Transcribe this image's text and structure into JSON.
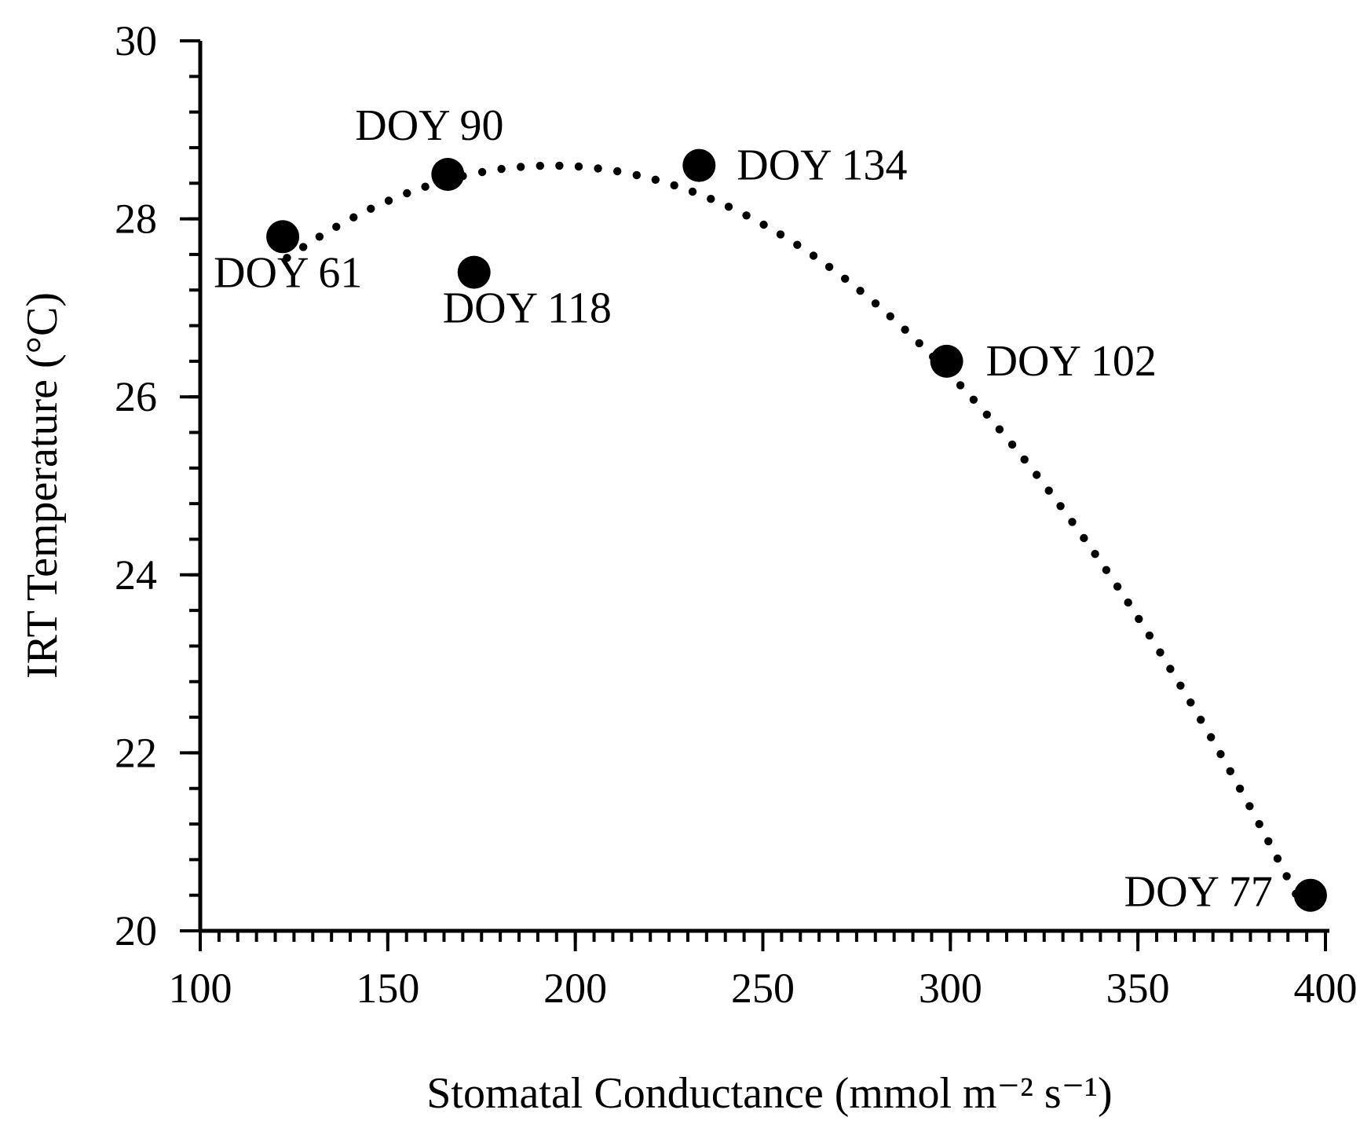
{
  "chart_data": {
    "type": "scatter",
    "title": "",
    "xlabel": "Stomatal Conductance (mmol m⁻² s⁻¹)",
    "ylabel": "IRT Temperature (°C)",
    "xlim": [
      100,
      400
    ],
    "ylim": [
      20,
      30
    ],
    "x_ticks": [
      "100",
      "150",
      "200",
      "250",
      "300",
      "350",
      "400"
    ],
    "y_ticks": [
      "20",
      "22",
      "24",
      "26",
      "28",
      "30"
    ],
    "x_minor_step": 5,
    "y_minor_step": 0.4,
    "grid": false,
    "legend": "none",
    "points": [
      {
        "label": "DOY 61",
        "x": 122,
        "y": 27.8
      },
      {
        "label": "DOY 90",
        "x": 166,
        "y": 28.5
      },
      {
        "label": "DOY 118",
        "x": 173,
        "y": 27.4
      },
      {
        "label": "DOY 134",
        "x": 233,
        "y": 28.6
      },
      {
        "label": "DOY 102",
        "x": 299,
        "y": 26.4
      },
      {
        "label": "DOY 77",
        "x": 396,
        "y": 20.4
      }
    ],
    "trendline": {
      "type": "polynomial-2",
      "style": "dotted",
      "x_range": [
        123,
        394
      ],
      "coefficients": [
        20.79,
        0.0806,
        -0.000208
      ]
    }
  }
}
